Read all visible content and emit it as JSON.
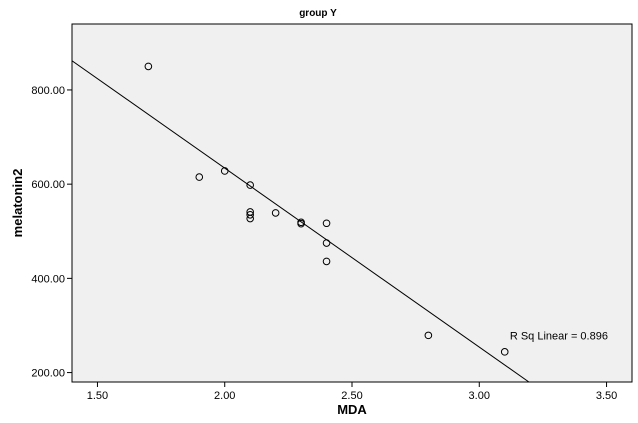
{
  "chart_data": {
    "type": "scatter",
    "title": "group Y",
    "xlabel": "MDA",
    "ylabel": "melatonin2",
    "xlim": [
      1.4,
      3.6
    ],
    "ylim": [
      180,
      940
    ],
    "xticks": [
      {
        "value": 1.5,
        "label": "1.50"
      },
      {
        "value": 2.0,
        "label": "2.00"
      },
      {
        "value": 2.5,
        "label": "2.50"
      },
      {
        "value": 3.0,
        "label": "3.00"
      },
      {
        "value": 3.5,
        "label": "3.50"
      }
    ],
    "yticks": [
      {
        "value": 200,
        "label": "200.00"
      },
      {
        "value": 400,
        "label": "400.00"
      },
      {
        "value": 600,
        "label": "600.00"
      },
      {
        "value": 800,
        "label": "800.00"
      }
    ],
    "points": [
      {
        "x": 1.7,
        "y": 850
      },
      {
        "x": 1.9,
        "y": 615
      },
      {
        "x": 2.0,
        "y": 628
      },
      {
        "x": 2.1,
        "y": 598
      },
      {
        "x": 2.1,
        "y": 541
      },
      {
        "x": 2.1,
        "y": 535
      },
      {
        "x": 2.1,
        "y": 527
      },
      {
        "x": 2.2,
        "y": 539
      },
      {
        "x": 2.3,
        "y": 519
      },
      {
        "x": 2.3,
        "y": 516
      },
      {
        "x": 2.4,
        "y": 517
      },
      {
        "x": 2.4,
        "y": 475
      },
      {
        "x": 2.4,
        "y": 436
      },
      {
        "x": 2.8,
        "y": 279
      },
      {
        "x": 3.1,
        "y": 244
      }
    ],
    "fit_line": {
      "x1": 1.4,
      "y1": 862,
      "x2": 3.195,
      "y2": 180
    },
    "annotation": {
      "text": "R Sq Linear = 0.896",
      "x": 3.12,
      "y": 270
    },
    "colors": {
      "plot_bg": "#f0f0f0",
      "marker": "#000000",
      "line": "#000000"
    },
    "grid": false,
    "legend": "none"
  }
}
